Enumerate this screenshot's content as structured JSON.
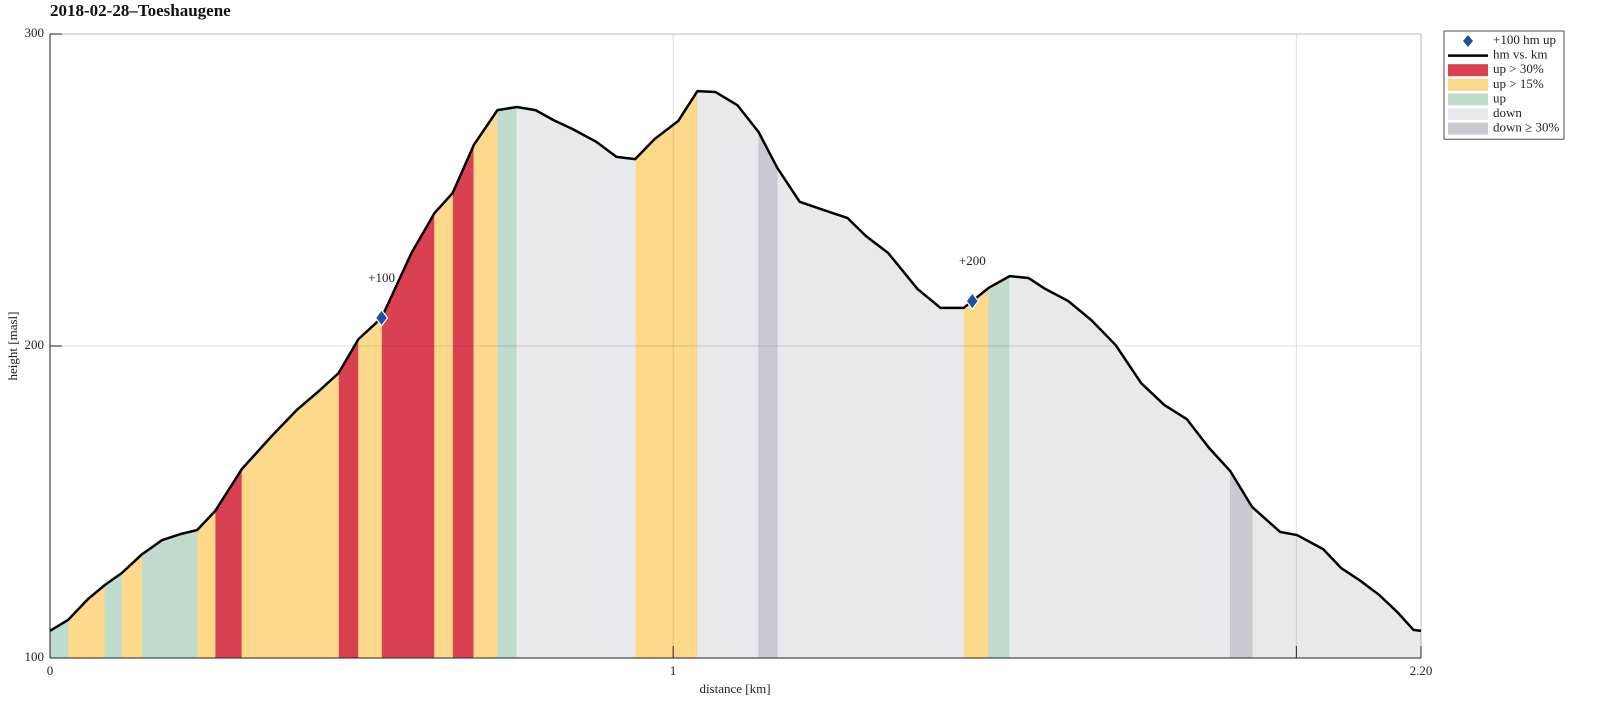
{
  "chart_data": {
    "type": "profile",
    "title": "2018-02-28–Toeshaugene",
    "xlabel": "distance [km]",
    "ylabel": "height [masl]",
    "xlim": [
      0,
      2.2
    ],
    "ylim": [
      100,
      300
    ],
    "xticks": [
      0,
      1,
      {
        "value": 2,
        "label": null
      },
      {
        "value": 2.2,
        "label": "2.20"
      }
    ],
    "yticks": [
      100,
      200,
      300
    ],
    "grid": true,
    "legend": "outside upper right",
    "milestones": {
      "name": "+100 hm up",
      "color": "#1f4fa0",
      "x": [
        0.532,
        1.48
      ],
      "values": [
        209.0,
        214.4
      ],
      "labels": [
        "+100",
        "+200"
      ]
    },
    "profile": {
      "name": "hm vs. km",
      "color": "#000000",
      "x": [
        0,
        0.029,
        0.061,
        0.088,
        0.115,
        0.148,
        0.18,
        0.209,
        0.236,
        0.265,
        0.308,
        0.356,
        0.396,
        0.43,
        0.463,
        0.495,
        0.532,
        0.58,
        0.617,
        0.646,
        0.68,
        0.718,
        0.749,
        0.779,
        0.808,
        0.838,
        0.877,
        0.909,
        0.939,
        0.97,
        1.008,
        1.039,
        1.068,
        1.103,
        1.137,
        1.167,
        1.203,
        1.241,
        1.28,
        1.309,
        1.345,
        1.392,
        1.429,
        1.466,
        1.48,
        1.506,
        1.54,
        1.57,
        1.597,
        1.634,
        1.671,
        1.71,
        1.751,
        1.788,
        1.824,
        1.86,
        1.894,
        1.929,
        1.974,
        2.001,
        2.043,
        2.072,
        2.101,
        2.133,
        2.162,
        2.188,
        2.2
      ],
      "values": [
        108.7,
        112.2,
        118.9,
        123.4,
        127.2,
        133.3,
        137.8,
        139.7,
        141.0,
        147.1,
        160.6,
        171.2,
        179.5,
        185.3,
        191.3,
        202.2,
        209.0,
        229.8,
        242.6,
        249.0,
        264.4,
        275.6,
        276.6,
        275.6,
        272.4,
        269.6,
        265.4,
        260.6,
        259.9,
        266.3,
        272.1,
        281.7,
        281.4,
        277.2,
        268.6,
        257.1,
        246.2,
        243.6,
        241.0,
        235.3,
        229.8,
        218.3,
        212.2,
        212.2,
        214.4,
        218.6,
        222.4,
        221.8,
        218.3,
        214.4,
        208.3,
        200.3,
        188.1,
        181.1,
        176.6,
        167.3,
        159.9,
        148.4,
        140.4,
        139.4,
        134.9,
        128.8,
        125.0,
        120.2,
        114.7,
        109.0,
        108.7
      ]
    },
    "bands": [
      {
        "name": "up > 30%",
        "color": "#d94052",
        "ranges": [
          [
            0.265,
            0.308
          ],
          [
            0.463,
            0.495
          ],
          [
            0.532,
            0.617
          ],
          [
            0.646,
            0.68
          ]
        ]
      },
      {
        "name": "up > 15%",
        "color": "#fcd98b",
        "ranges": [
          [
            0.029,
            0.088
          ],
          [
            0.115,
            0.148
          ],
          [
            0.236,
            0.265
          ],
          [
            0.308,
            0.463
          ],
          [
            0.495,
            0.532
          ],
          [
            0.617,
            0.646
          ],
          [
            0.68,
            0.718
          ],
          [
            0.939,
            1.039
          ],
          [
            1.466,
            1.506
          ]
        ]
      },
      {
        "name": "up",
        "color": "#c0dccd",
        "ranges": [
          [
            0,
            0.029
          ],
          [
            0.088,
            0.115
          ],
          [
            0.148,
            0.236
          ],
          [
            0.718,
            0.749
          ],
          [
            1.506,
            1.54
          ]
        ]
      },
      {
        "name": "down",
        "color": "#e8e9ed",
        "ranges": [
          [
            0.749,
            0.939
          ],
          [
            1.039,
            1.137
          ],
          [
            1.167,
            1.466
          ],
          [
            1.54,
            1.894
          ],
          [
            1.929,
            2.2
          ]
        ]
      },
      {
        "name": "down ≥ 30%",
        "color": "#c8cad2",
        "ranges": [
          [
            1.137,
            1.167
          ],
          [
            1.894,
            1.929
          ]
        ]
      }
    ]
  }
}
